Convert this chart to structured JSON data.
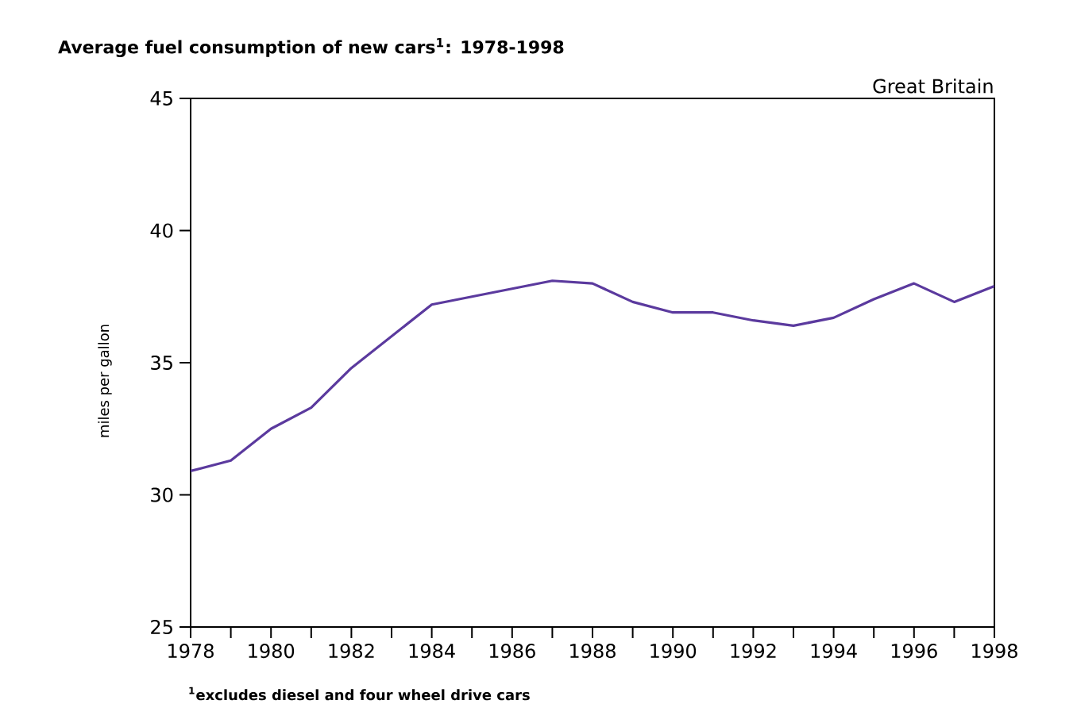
{
  "chart_data": {
    "type": "line",
    "title": "Average fuel consumption of new cars$^{1}$: 1978-1998",
    "subtitle": "Great Britain",
    "ylabel": "miles per gallon",
    "annotations": [
      "$^{1}$excludes diesel and four wheel drive cars"
    ],
    "x": [
      1978,
      1979,
      1980,
      1981,
      1982,
      1983,
      1984,
      1985,
      1986,
      1987,
      1988,
      1989,
      1990,
      1991,
      1992,
      1993,
      1994,
      1995,
      1996,
      1997,
      1998
    ],
    "series": [
      {
        "color": "#5b3a9e",
        "values": [
          30.9,
          31.3,
          32.5,
          33.3,
          34.8,
          36.0,
          37.2,
          37.5,
          37.8,
          38.1,
          38.0,
          37.3,
          36.9,
          36.9,
          36.6,
          36.4,
          36.7,
          37.4,
          38.0,
          37.3,
          37.9
        ]
      }
    ],
    "xlim": [
      1978,
      1998
    ],
    "ylim": [
      25,
      45
    ],
    "xticks": [
      1978,
      {
        "value": 1979,
        "label": null
      },
      1980,
      {
        "value": 1981,
        "label": null
      },
      1982,
      {
        "value": 1983,
        "label": null
      },
      1984,
      {
        "value": 1985,
        "label": null
      },
      1986,
      {
        "value": 1987,
        "label": null
      },
      1988,
      {
        "value": 1989,
        "label": null
      },
      1990,
      {
        "value": 1991,
        "label": null
      },
      1992,
      {
        "value": 1993,
        "label": null
      },
      1994,
      {
        "value": 1995,
        "label": null
      },
      1996,
      {
        "value": 1997,
        "label": null
      },
      1998
    ],
    "yticks": [
      25,
      30,
      35,
      40,
      45
    ],
    "grid": false,
    "marker": "none",
    "line_style": "solid"
  }
}
